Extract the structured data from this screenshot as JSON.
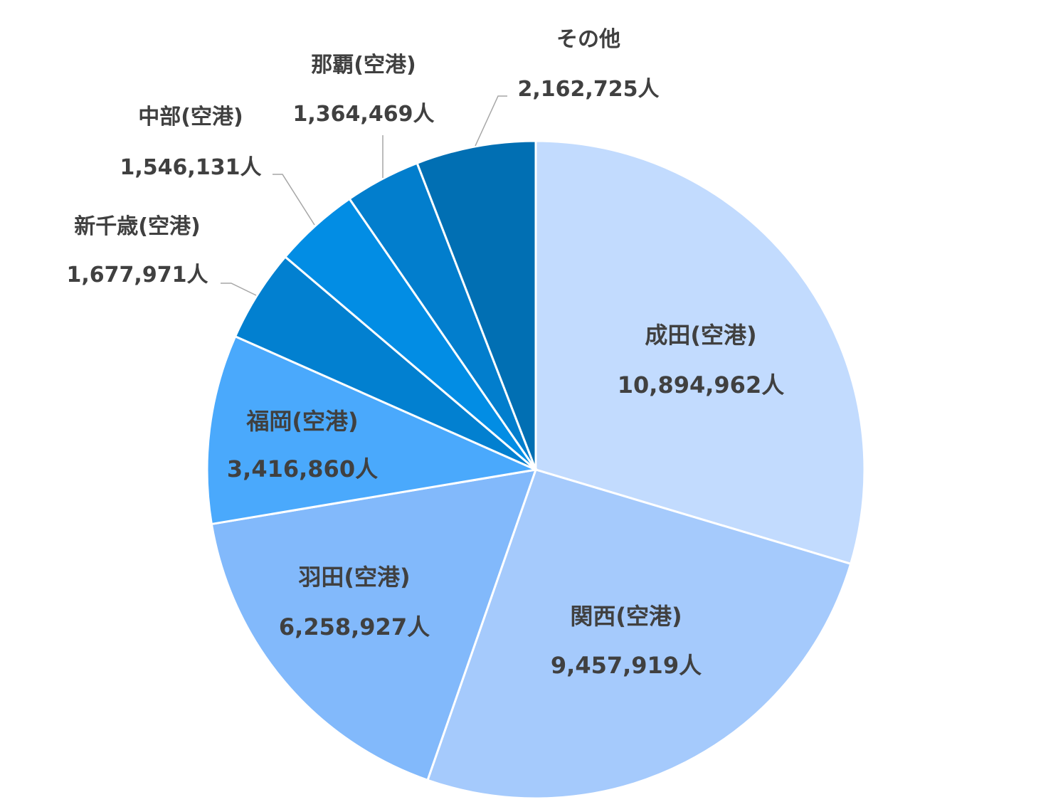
{
  "chart_data": {
    "type": "pie",
    "unit": "人",
    "slices": [
      {
        "label": "成田(空港)",
        "value": 10894962,
        "value_text": "10,894,962人",
        "color": "#c2dbfe"
      },
      {
        "label": "関西(空港)",
        "value": 9457919,
        "value_text": "9,457,919人",
        "color": "#a5cafc"
      },
      {
        "label": "羽田(空港)",
        "value": 6258927,
        "value_text": "6,258,927人",
        "color": "#82b9fb"
      },
      {
        "label": "福岡(空港)",
        "value": 3416860,
        "value_text": "3,416,860人",
        "color": "#4aa9fc"
      },
      {
        "label": "新千歳(空港)",
        "value": 1677971,
        "value_text": "1,677,971人",
        "color": "#0280d0"
      },
      {
        "label": "中部(空港)",
        "value": 1546131,
        "value_text": "1,546,131人",
        "color": "#028de4"
      },
      {
        "label": "那覇(空港)",
        "value": 1364469,
        "value_text": "1,364,469人",
        "color": "#027ecd"
      },
      {
        "label": "その他",
        "value": 2162725,
        "value_text": "2,162,725人",
        "color": "#016fb3"
      }
    ]
  }
}
